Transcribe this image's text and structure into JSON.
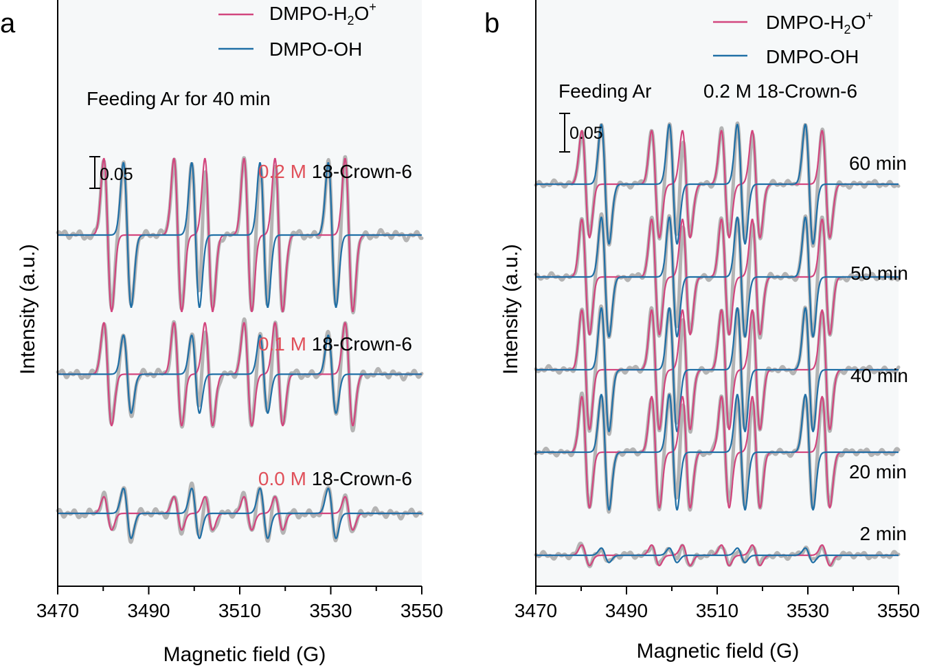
{
  "colors": {
    "h2o_series": "#d2457e",
    "oh_series": "#1f6fa6",
    "raw_series": "#b4b4b4",
    "conc_accent": "#e0505a",
    "plot_bg": "#f6f8f9",
    "axis": "#000000"
  },
  "chart_data": [
    {
      "panel": "a",
      "type": "line",
      "title": "Feeding Ar for 40 min",
      "xlabel": "Magnetic field (G)",
      "ylabel": "Intensity (a.u.)",
      "xlim": [
        3470,
        3550
      ],
      "xticks": [
        "3470",
        "3490",
        "3510",
        "3530",
        "3550"
      ],
      "legend": [
        {
          "name": "DMPO-H",
          "sub": "2",
          "tail": "O",
          "sup": "+"
        },
        {
          "name": "DMPO-OH"
        }
      ],
      "legend_position": "top-right",
      "scale_bar": {
        "label": "0.05",
        "value": 0.05
      },
      "hfs": {
        "h2o_lines": [
          3481,
          3496.4,
          3503.2,
          3511.8,
          3518.6,
          3534
        ],
        "oh_lines": [
          3485.3,
          3500.3,
          3515.3,
          3530.3
        ]
      },
      "series": [
        {
          "name": "0.2 M 18-Crown-6",
          "conc": "0.2 M",
          "label": "18-Crown-6",
          "h2o_amp": 0.055,
          "oh_amp": 0.052,
          "offset": 0.2
        },
        {
          "name": "0.1 M 18-Crown-6",
          "conc": "0.1 M",
          "label": "18-Crown-6",
          "h2o_amp": 0.037,
          "oh_amp": 0.028,
          "offset": 0.1
        },
        {
          "name": "0.0 M 18-Crown-6",
          "conc": "0.0 M",
          "label": "18-Crown-6",
          "h2o_amp": 0.012,
          "oh_amp": 0.018,
          "offset": 0.0
        }
      ]
    },
    {
      "panel": "b",
      "type": "line",
      "title": "Feeding Ar",
      "subtitle": "0.2 M 18-Crown-6",
      "xlabel": "Magnetic field (G)",
      "ylabel": "Intensity (a.u.)",
      "xlim": [
        3470,
        3550
      ],
      "xticks": [
        "3470",
        "3490",
        "3510",
        "3530",
        "3550"
      ],
      "legend": [
        {
          "name": "DMPO-H",
          "sub": "2",
          "tail": "O",
          "sup": "+"
        },
        {
          "name": "DMPO-OH"
        }
      ],
      "legend_position": "top-right",
      "scale_bar": {
        "label": "0.05",
        "value": 0.05
      },
      "hfs": {
        "h2o_lines": [
          3481,
          3496.4,
          3503.2,
          3511.8,
          3518.6,
          3534
        ],
        "oh_lines": [
          3485.3,
          3500.3,
          3515.3,
          3530.3
        ]
      },
      "series": [
        {
          "name": "60 min",
          "h2o_amp": 0.052,
          "oh_amp": 0.058,
          "offset": 0.36
        },
        {
          "name": "50 min",
          "h2o_amp": 0.056,
          "oh_amp": 0.058,
          "offset": 0.27
        },
        {
          "name": "40 min",
          "h2o_amp": 0.058,
          "oh_amp": 0.06,
          "offset": 0.18
        },
        {
          "name": "20 min",
          "h2o_amp": 0.054,
          "oh_amp": 0.056,
          "offset": 0.1
        },
        {
          "name": "2 min",
          "h2o_amp": 0.01,
          "oh_amp": 0.007,
          "offset": 0.0
        }
      ]
    }
  ]
}
